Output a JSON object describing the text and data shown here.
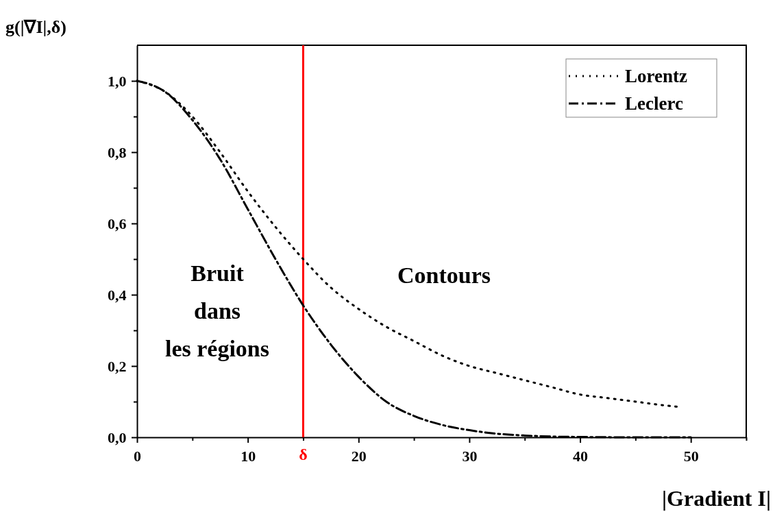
{
  "chart_data": {
    "type": "line",
    "ylabel": "g(|∇I|,δ)",
    "xlabel": "|Gradient I|",
    "xlim": [
      0,
      55
    ],
    "ylim": [
      0,
      1.1
    ],
    "xticks": [
      0,
      {
        "value": 5,
        "label": null
      },
      10,
      {
        "value": 15,
        "label": null
      },
      20,
      {
        "value": 25,
        "label": null
      },
      30,
      {
        "value": 35,
        "label": null
      },
      40,
      {
        "value": 45,
        "label": null
      },
      50,
      {
        "value": 55,
        "label": null
      }
    ],
    "yticks": [
      {
        "value": 0,
        "label": "0,0"
      },
      {
        "value": 0.1,
        "label": null
      },
      {
        "value": 0.2,
        "label": "0,2"
      },
      {
        "value": 0.3,
        "label": null
      },
      {
        "value": 0.4,
        "label": "0,4"
      },
      {
        "value": 0.5,
        "label": null
      },
      {
        "value": 0.6,
        "label": "0,6"
      },
      {
        "value": 0.7,
        "label": null
      },
      {
        "value": 0.8,
        "label": "0,8"
      },
      {
        "value": 0.9,
        "label": null
      },
      {
        "value": 1.0,
        "label": "1,0"
      }
    ],
    "grid": false,
    "legend": "top right",
    "marker": "none",
    "series": [
      {
        "name": "Lorentz",
        "color": "#000000",
        "line_style": "dotted",
        "x": [
          0,
          2.5,
          5,
          7.5,
          10,
          12.5,
          15,
          17.5,
          20,
          22.5,
          25,
          27.5,
          30,
          32.5,
          35,
          37.5,
          40,
          42.5,
          45,
          47.5,
          49
        ],
        "values": [
          1.0,
          0.97,
          0.9,
          0.8,
          0.69,
          0.59,
          0.5,
          0.42,
          0.36,
          0.31,
          0.27,
          0.23,
          0.2,
          0.18,
          0.16,
          0.14,
          0.12,
          0.11,
          0.1,
          0.09,
          0.085
        ]
      },
      {
        "name": "Leclerc",
        "color": "#000000",
        "line_style": "dashed",
        "x": [
          0,
          2.5,
          5,
          7.5,
          10,
          12.5,
          15,
          17.5,
          20,
          22.5,
          25,
          27.5,
          30,
          32.5,
          35,
          37.5,
          40,
          45,
          50
        ],
        "values": [
          1.0,
          0.97,
          0.89,
          0.78,
          0.64,
          0.5,
          0.37,
          0.26,
          0.17,
          0.1,
          0.06,
          0.035,
          0.02,
          0.01,
          0.005,
          0.002,
          0.001,
          0,
          0
        ]
      }
    ],
    "ref_lines": [
      {
        "axis": "x",
        "value": 15,
        "label": "δ",
        "color": "#ff0000",
        "line_style": "solid"
      }
    ],
    "annotations": [
      "Bruit\ndans\nles régions",
      "Contours"
    ]
  }
}
